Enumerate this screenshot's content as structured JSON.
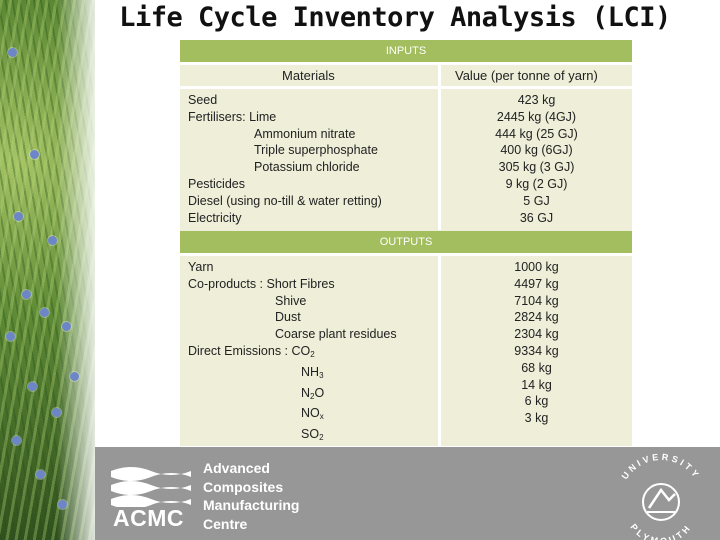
{
  "title": "Life Cycle Inventory Analysis (LCI)",
  "inputs": {
    "section_label": "INPUTS",
    "col_materials": "Materials",
    "col_value": "Value  (per tonne of yarn)",
    "materials": [
      "Seed",
      "Fertilisers: Lime",
      "Ammonium nitrate",
      "Triple superphosphate",
      "Potassium chloride",
      "Pesticides",
      "Diesel (using no-till & water retting)",
      "Electricity"
    ],
    "values": [
      "423 kg",
      "2445 kg  (4GJ)",
      "444 kg  (25 GJ)",
      "400 kg  (6GJ)",
      "305 kg  (3 GJ)",
      "9 kg  (2 GJ)",
      "5 GJ",
      "36 GJ"
    ]
  },
  "outputs": {
    "section_label": "OUTPUTS",
    "products": [
      "Yarn",
      "Co-products : Short Fibres",
      "Shive",
      "Dust",
      "Coarse plant residues"
    ],
    "emissions_label": "Direct Emissions : ",
    "emissions": [
      {
        "base": "CO",
        "sub": "2"
      },
      {
        "base": "NH",
        "sub": "3"
      },
      {
        "base": "N",
        "sub": "2",
        "suffix": "O"
      },
      {
        "base": "NO",
        "sub": "x"
      },
      {
        "base": "SO",
        "sub": "2"
      }
    ],
    "values": [
      "1000 kg",
      "4497 kg",
      "7104 kg",
      "2824 kg",
      "2304 kg",
      "9334 kg",
      "68 kg",
      "14 kg",
      "6 kg",
      "3 kg"
    ]
  },
  "footer": {
    "acmc": "ACMC",
    "centre_lines": [
      "Advanced",
      "Composites",
      "Manufacturing",
      "Centre"
    ],
    "university_arc_top": "UNIVERSITY",
    "university_arc_bottom": "PLYMOUTH"
  }
}
